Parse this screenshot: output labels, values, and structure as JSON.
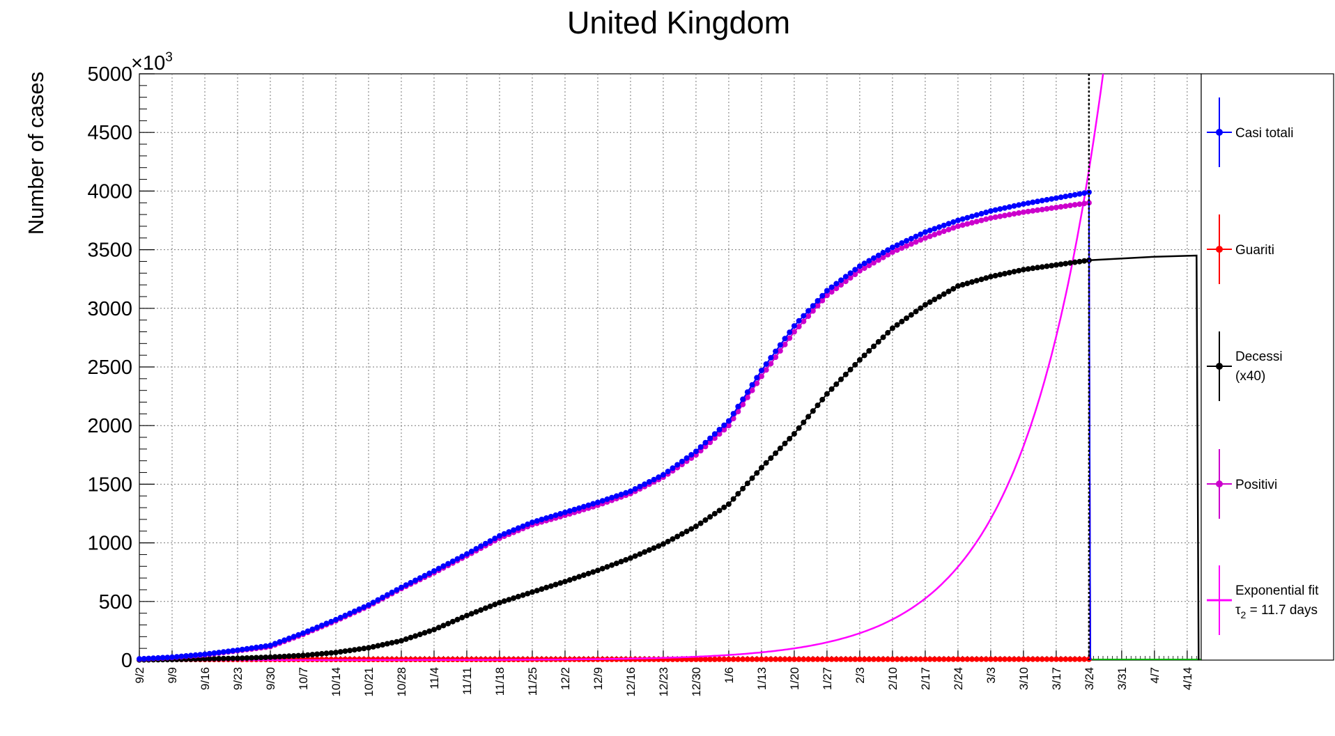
{
  "chart_data": {
    "type": "line",
    "title": "United Kingdom",
    "ylabel": "Number of cases",
    "y_multiplier": "×10",
    "y_multiplier_exp": "3",
    "ylim": [
      0,
      5000
    ],
    "y_ticks": [
      "0",
      "500",
      "1000",
      "1500",
      "2000",
      "2500",
      "3000",
      "3500",
      "4000",
      "4500",
      "5000"
    ],
    "x_ticks": [
      "9/2",
      "9/9",
      "9/16",
      "9/23",
      "9/30",
      "10/7",
      "10/14",
      "10/21",
      "10/28",
      "11/4",
      "11/11",
      "11/18",
      "11/25",
      "12/2",
      "12/9",
      "12/16",
      "12/23",
      "12/30",
      "1/6",
      "1/13",
      "1/20",
      "1/27",
      "2/3",
      "2/10",
      "2/17",
      "2/24",
      "3/3",
      "3/10",
      "3/17",
      "3/24",
      "3/31",
      "4/7",
      "4/14"
    ],
    "grid": true,
    "legend_position": "right",
    "last_data_day": 203,
    "series": [
      {
        "name": "Casi totali",
        "color": "#0000ff",
        "x": [
          0,
          7,
          14,
          21,
          28,
          35,
          42,
          49,
          56,
          63,
          70,
          77,
          84,
          91,
          98,
          105,
          112,
          119,
          126,
          133,
          140,
          147,
          154,
          161,
          168,
          175,
          182,
          189,
          196,
          203
        ],
        "y": [
          10,
          25,
          50,
          85,
          125,
          230,
          345,
          470,
          620,
          760,
          905,
          1060,
          1175,
          1260,
          1345,
          1440,
          1580,
          1780,
          2040,
          2470,
          2850,
          3150,
          3360,
          3520,
          3650,
          3750,
          3830,
          3890,
          3940,
          3990
        ]
      },
      {
        "name": "Guariti",
        "color": "#ff0000",
        "x": [
          0,
          203
        ],
        "y": [
          5,
          8
        ]
      },
      {
        "name": "Decessi",
        "name2": "(x40)",
        "color": "#000000",
        "x": [
          0,
          7,
          14,
          21,
          28,
          35,
          42,
          49,
          56,
          63,
          70,
          77,
          84,
          91,
          98,
          105,
          112,
          119,
          126,
          133,
          140,
          147,
          154,
          161,
          168,
          175,
          182,
          189,
          196,
          203
        ],
        "y": [
          2,
          5,
          10,
          15,
          25,
          40,
          65,
          105,
          165,
          260,
          380,
          490,
          580,
          670,
          765,
          870,
          990,
          1140,
          1330,
          1640,
          1930,
          2270,
          2560,
          2830,
          3030,
          3190,
          3270,
          3330,
          3370,
          3410
        ]
      },
      {
        "name": "Positivi",
        "color": "#cc00cc",
        "x": [
          0,
          7,
          14,
          21,
          28,
          35,
          42,
          49,
          56,
          63,
          70,
          77,
          84,
          91,
          98,
          105,
          112,
          119,
          126,
          133,
          140,
          147,
          154,
          161,
          168,
          175,
          182,
          189,
          196,
          203
        ],
        "y": [
          8,
          22,
          45,
          80,
          115,
          220,
          335,
          460,
          610,
          745,
          890,
          1040,
          1155,
          1235,
          1320,
          1420,
          1560,
          1750,
          2000,
          2420,
          2800,
          3110,
          3320,
          3480,
          3600,
          3700,
          3770,
          3820,
          3860,
          3900
        ]
      },
      {
        "name": "Exponential fit",
        "name2_prefix": "τ",
        "name2_sub": "2",
        "name2_suffix": " = 11.7 days",
        "color": "#ff00ff",
        "doubling_days": 11.7,
        "value_at_day_203": 4180
      }
    ],
    "projection_curve": {
      "color": "#000000",
      "x": [
        203,
        210,
        217,
        224,
        226
      ],
      "y": [
        3410,
        3425,
        3440,
        3448,
        3450
      ]
    }
  }
}
